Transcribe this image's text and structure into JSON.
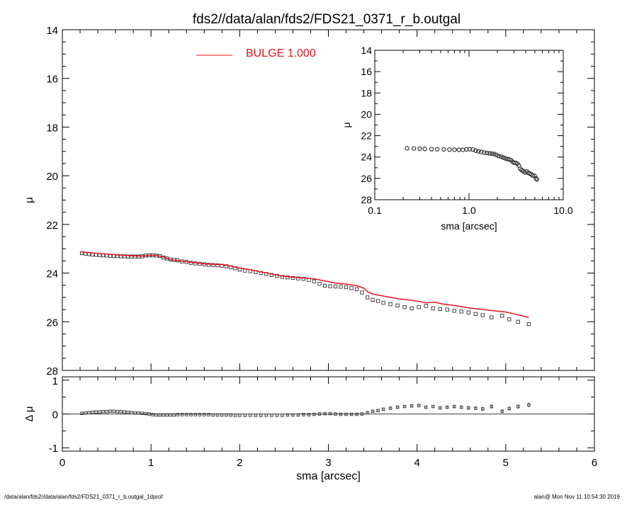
{
  "title": "fds2//data/alan/fds2/FDS21_0371_r_b.outgal",
  "footer": {
    "left": "/data/alan/fds2//data/alan/fds2/FDS21_0371_r_b.outgal_1dprof",
    "right": "alan@  Mon Nov 11 10:54:30 2019"
  },
  "colors": {
    "model": "#e8141c",
    "data": "#333333",
    "axis": "#000000"
  },
  "chart_data": [
    {
      "name": "main-profile",
      "type": "scatter",
      "xlabel": "",
      "ylabel": "μ",
      "xlim": [
        0,
        6
      ],
      "ylim": [
        28,
        14
      ],
      "y_inverted": true,
      "yticks": [
        14,
        16,
        18,
        20,
        22,
        24,
        26,
        28
      ],
      "legend": {
        "label": "BULGE  1.000",
        "color": "#e8141c",
        "placement": "top-center"
      },
      "series": [
        {
          "role": "data",
          "marker": "square",
          "x": [
            0.22,
            0.26,
            0.3,
            0.34,
            0.38,
            0.42,
            0.46,
            0.5,
            0.54,
            0.58,
            0.62,
            0.66,
            0.7,
            0.74,
            0.78,
            0.82,
            0.86,
            0.9,
            0.94,
            0.98,
            1.02,
            1.06,
            1.1,
            1.14,
            1.18,
            1.22,
            1.26,
            1.3,
            1.35,
            1.4,
            1.45,
            1.5,
            1.55,
            1.6,
            1.65,
            1.7,
            1.75,
            1.8,
            1.85,
            1.9,
            1.95,
            2.0,
            2.06,
            2.12,
            2.18,
            2.24,
            2.3,
            2.36,
            2.42,
            2.48,
            2.54,
            2.6,
            2.66,
            2.72,
            2.78,
            2.84,
            2.9,
            2.96,
            3.02,
            3.08,
            3.14,
            3.2,
            3.26,
            3.32,
            3.38,
            3.44,
            3.5,
            3.56,
            3.62,
            3.7,
            3.78,
            3.86,
            3.94,
            4.02,
            4.1,
            4.18,
            4.26,
            4.34,
            4.42,
            4.5,
            4.58,
            4.66,
            4.74,
            4.84,
            4.96,
            5.04,
            5.14,
            5.26
          ],
          "y": [
            23.18,
            23.2,
            23.22,
            23.24,
            23.25,
            23.26,
            23.27,
            23.28,
            23.29,
            23.3,
            23.3,
            23.31,
            23.31,
            23.32,
            23.32,
            23.32,
            23.32,
            23.31,
            23.28,
            23.27,
            23.27,
            23.28,
            23.3,
            23.36,
            23.4,
            23.44,
            23.46,
            23.48,
            23.52,
            23.54,
            23.58,
            23.6,
            23.62,
            23.64,
            23.66,
            23.67,
            23.68,
            23.7,
            23.72,
            23.76,
            23.8,
            23.86,
            23.9,
            23.92,
            23.96,
            24.0,
            24.04,
            24.08,
            24.12,
            24.16,
            24.18,
            24.2,
            24.22,
            24.24,
            24.28,
            24.34,
            24.44,
            24.52,
            24.54,
            24.55,
            24.56,
            24.58,
            24.62,
            24.66,
            24.8,
            25.0,
            25.1,
            25.15,
            25.22,
            25.28,
            25.33,
            25.4,
            25.45,
            25.4,
            25.35,
            25.45,
            25.48,
            25.5,
            25.55,
            25.58,
            25.62,
            25.68,
            25.73,
            25.82,
            25.75,
            25.9,
            26.0,
            26.1
          ]
        },
        {
          "role": "model",
          "name": "BULGE  1.000",
          "x": [
            0.22,
            0.3,
            0.4,
            0.5,
            0.6,
            0.7,
            0.8,
            0.9,
            0.98,
            1.06,
            1.14,
            1.22,
            1.3,
            1.4,
            1.5,
            1.6,
            1.7,
            1.8,
            1.9,
            2.0,
            2.12,
            2.24,
            2.36,
            2.48,
            2.6,
            2.72,
            2.84,
            2.96,
            3.08,
            3.2,
            3.32,
            3.4,
            3.44,
            3.5,
            3.6,
            3.7,
            3.8,
            3.9,
            4.0,
            4.1,
            4.2,
            4.3,
            4.4,
            4.5,
            4.6,
            4.7,
            4.8,
            4.9,
            5.0,
            5.1,
            5.26
          ],
          "y": [
            23.13,
            23.16,
            23.19,
            23.22,
            23.25,
            23.27,
            23.29,
            23.3,
            23.27,
            23.27,
            23.34,
            23.45,
            23.49,
            23.53,
            23.58,
            23.62,
            23.64,
            23.65,
            23.71,
            23.79,
            23.86,
            23.95,
            24.04,
            24.12,
            24.17,
            24.2,
            24.24,
            24.32,
            24.41,
            24.45,
            24.52,
            24.62,
            24.76,
            24.86,
            24.93,
            25.0,
            25.06,
            25.1,
            25.15,
            25.22,
            25.2,
            25.28,
            25.32,
            25.38,
            25.44,
            25.48,
            25.52,
            25.56,
            25.6,
            25.68,
            25.82
          ]
        }
      ]
    },
    {
      "name": "inset-profile",
      "type": "scatter",
      "xlabel": "sma [arcsec]",
      "ylabel": "μ",
      "xscale": "log",
      "xlim": [
        0.1,
        10.0
      ],
      "xtick_labels": [
        "0.1",
        "1.0",
        "10.0"
      ],
      "ylim": [
        28,
        14
      ],
      "y_inverted": true,
      "yticks": [
        14,
        16,
        18,
        20,
        22,
        24,
        26,
        28
      ],
      "series": [
        {
          "role": "data",
          "marker": "circle",
          "x": [
            0.22,
            0.26,
            0.3,
            0.34,
            0.4,
            0.46,
            0.54,
            0.62,
            0.7,
            0.78,
            0.86,
            0.94,
            1.02,
            1.1,
            1.18,
            1.26,
            1.35,
            1.45,
            1.55,
            1.65,
            1.75,
            1.85,
            1.95,
            2.06,
            2.18,
            2.3,
            2.42,
            2.54,
            2.66,
            2.78,
            2.9,
            3.02,
            3.14,
            3.26,
            3.38,
            3.5,
            3.62,
            3.78,
            3.94,
            4.1,
            4.26,
            4.42,
            4.58,
            4.74,
            4.96,
            5.14,
            5.26
          ],
          "y": [
            23.18,
            23.2,
            23.22,
            23.24,
            23.26,
            23.27,
            23.29,
            23.3,
            23.31,
            23.32,
            23.32,
            23.28,
            23.27,
            23.3,
            23.4,
            23.46,
            23.52,
            23.58,
            23.62,
            23.66,
            23.68,
            23.72,
            23.8,
            23.9,
            23.96,
            24.04,
            24.12,
            24.18,
            24.22,
            24.28,
            24.44,
            24.54,
            24.56,
            24.62,
            24.8,
            25.1,
            25.22,
            25.33,
            25.45,
            25.35,
            25.48,
            25.55,
            25.62,
            25.73,
            25.75,
            26.0,
            26.1
          ]
        }
      ]
    },
    {
      "name": "residuals",
      "type": "scatter",
      "xlabel": "sma [arcsec]",
      "ylabel": "Δ μ",
      "xlim": [
        0,
        6
      ],
      "xticks": [
        0,
        1,
        2,
        3,
        4,
        5,
        6
      ],
      "ylim": [
        -1.1,
        1.1
      ],
      "yticks": [
        -1,
        0,
        1
      ],
      "zero_line": true,
      "series": [
        {
          "role": "residual",
          "marker": "square",
          "x": [
            0.22,
            0.26,
            0.3,
            0.34,
            0.38,
            0.42,
            0.46,
            0.5,
            0.54,
            0.58,
            0.62,
            0.66,
            0.7,
            0.74,
            0.78,
            0.82,
            0.86,
            0.9,
            0.94,
            0.98,
            1.02,
            1.06,
            1.1,
            1.14,
            1.18,
            1.22,
            1.26,
            1.3,
            1.35,
            1.4,
            1.45,
            1.5,
            1.55,
            1.6,
            1.65,
            1.7,
            1.75,
            1.8,
            1.85,
            1.9,
            1.95,
            2.0,
            2.06,
            2.12,
            2.18,
            2.24,
            2.3,
            2.36,
            2.42,
            2.48,
            2.54,
            2.6,
            2.66,
            2.72,
            2.78,
            2.84,
            2.9,
            2.96,
            3.02,
            3.08,
            3.14,
            3.2,
            3.26,
            3.32,
            3.38,
            3.44,
            3.5,
            3.56,
            3.62,
            3.7,
            3.78,
            3.86,
            3.94,
            4.02,
            4.1,
            4.18,
            4.26,
            4.34,
            4.42,
            4.5,
            4.58,
            4.66,
            4.74,
            4.84,
            4.96,
            5.04,
            5.14,
            5.26
          ],
          "y": [
            0.02,
            0.03,
            0.04,
            0.05,
            0.06,
            0.06,
            0.07,
            0.07,
            0.08,
            0.08,
            0.07,
            0.07,
            0.06,
            0.05,
            0.04,
            0.03,
            0.03,
            0.02,
            0.01,
            0.0,
            -0.02,
            -0.03,
            -0.03,
            -0.03,
            -0.03,
            -0.03,
            -0.03,
            -0.02,
            -0.02,
            -0.02,
            -0.02,
            -0.02,
            -0.02,
            -0.02,
            -0.02,
            -0.03,
            -0.03,
            -0.03,
            -0.03,
            -0.03,
            -0.04,
            -0.04,
            -0.04,
            -0.04,
            -0.04,
            -0.04,
            -0.04,
            -0.04,
            -0.04,
            -0.04,
            -0.03,
            -0.03,
            -0.03,
            -0.02,
            -0.02,
            -0.01,
            0.0,
            0.01,
            0.01,
            0.0,
            -0.01,
            -0.01,
            -0.01,
            -0.01,
            0.0,
            0.04,
            0.08,
            0.1,
            0.14,
            0.17,
            0.2,
            0.22,
            0.24,
            0.25,
            0.2,
            0.22,
            0.18,
            0.2,
            0.22,
            0.2,
            0.18,
            0.17,
            0.15,
            0.22,
            0.08,
            0.16,
            0.22,
            0.27
          ],
          "err": [
            0.01,
            0.01,
            0.01,
            0.01,
            0.01,
            0.01,
            0.01,
            0.01,
            0.01,
            0.01,
            0.01,
            0.01,
            0.01,
            0.01,
            0.01,
            0.01,
            0.01,
            0.01,
            0.01,
            0.01,
            0.01,
            0.01,
            0.01,
            0.01,
            0.01,
            0.01,
            0.01,
            0.01,
            0.01,
            0.01,
            0.01,
            0.01,
            0.01,
            0.01,
            0.01,
            0.01,
            0.01,
            0.01,
            0.01,
            0.01,
            0.01,
            0.01,
            0.01,
            0.01,
            0.01,
            0.01,
            0.01,
            0.01,
            0.01,
            0.01,
            0.02,
            0.02,
            0.02,
            0.02,
            0.02,
            0.02,
            0.02,
            0.02,
            0.02,
            0.02,
            0.02,
            0.02,
            0.02,
            0.02,
            0.02,
            0.03,
            0.03,
            0.03,
            0.03,
            0.03,
            0.04,
            0.04,
            0.04,
            0.04,
            0.04,
            0.04,
            0.04,
            0.05,
            0.05,
            0.05,
            0.05,
            0.05,
            0.06,
            0.06,
            0.06,
            0.06,
            0.07,
            0.07
          ]
        }
      ]
    }
  ]
}
